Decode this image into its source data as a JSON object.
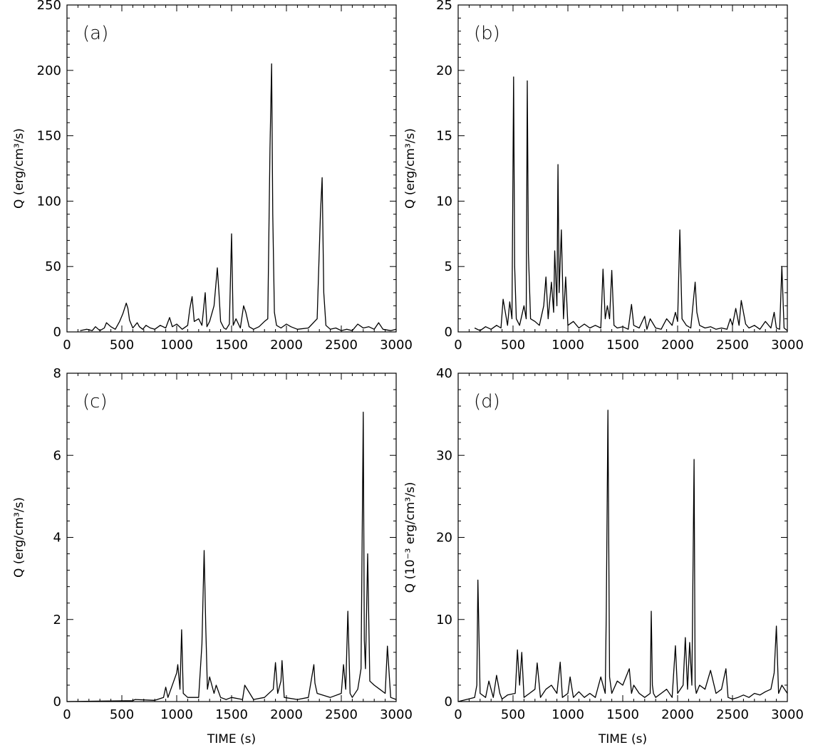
{
  "chart_data": [
    {
      "type": "line",
      "panel_label": "(a)",
      "ylabel": "Q (erg/cm³/s)",
      "xlabel": "",
      "xlim": [
        0,
        3000
      ],
      "ylim": [
        0,
        250
      ],
      "x_ticks": [
        0,
        500,
        1000,
        1500,
        2000,
        2500,
        3000
      ],
      "y_ticks": [
        0,
        50,
        100,
        150,
        200,
        250
      ],
      "series": [
        {
          "x": [
            120,
            180,
            230,
            260,
            300,
            340,
            360,
            400,
            440,
            480,
            510,
            540,
            555,
            570,
            600,
            640,
            660,
            690,
            720,
            760,
            800,
            850,
            900,
            935,
            960,
            1000,
            1050,
            1100,
            1120,
            1140,
            1160,
            1200,
            1230,
            1260,
            1275,
            1300,
            1340,
            1370,
            1385,
            1400,
            1430,
            1450,
            1480,
            1500,
            1515,
            1540,
            1580,
            1610,
            1630,
            1660,
            1700,
            1750,
            1800,
            1830,
            1850,
            1865,
            1875,
            1890,
            1910,
            1950,
            2000,
            2040,
            2100,
            2200,
            2280,
            2310,
            2325,
            2340,
            2360,
            2400,
            2450,
            2500,
            2550,
            2600,
            2650,
            2700,
            2750,
            2800,
            2840,
            2880,
            2950,
            3000
          ],
          "y": [
            1,
            2,
            1,
            4,
            1,
            3,
            7,
            4,
            2,
            8,
            14,
            22,
            18,
            9,
            3,
            7,
            4,
            2,
            5,
            3,
            2,
            5,
            3,
            11,
            4,
            6,
            2,
            5,
            18,
            27,
            8,
            10,
            5,
            30,
            4,
            8,
            20,
            49,
            30,
            8,
            3,
            2,
            6,
            75,
            5,
            10,
            3,
            20,
            15,
            4,
            2,
            4,
            8,
            10,
            140,
            205,
            90,
            15,
            5,
            3,
            6,
            4,
            2,
            3,
            10,
            90,
            118,
            30,
            5,
            2,
            3,
            1,
            2,
            1,
            6,
            3,
            4,
            2,
            7,
            2,
            1,
            2
          ]
        }
      ]
    },
    {
      "type": "line",
      "panel_label": "(b)",
      "ylabel": "Q (erg/cm³/s)",
      "xlabel": "",
      "xlim": [
        0,
        3000
      ],
      "ylim": [
        0,
        25
      ],
      "x_ticks": [
        0,
        500,
        1000,
        1500,
        2000,
        2500,
        3000
      ],
      "y_ticks": [
        0,
        5,
        10,
        15,
        20,
        25
      ],
      "series": [
        {
          "x": [
            150,
            200,
            250,
            300,
            350,
            390,
            410,
            450,
            470,
            490,
            505,
            515,
            530,
            560,
            600,
            620,
            630,
            640,
            660,
            700,
            740,
            780,
            800,
            820,
            850,
            870,
            880,
            900,
            910,
            920,
            940,
            960,
            980,
            1000,
            1050,
            1100,
            1150,
            1200,
            1250,
            1300,
            1320,
            1340,
            1360,
            1380,
            1400,
            1420,
            1450,
            1500,
            1550,
            1580,
            1600,
            1650,
            1700,
            1720,
            1750,
            1800,
            1850,
            1900,
            1950,
            1980,
            2000,
            2020,
            2040,
            2080,
            2120,
            2160,
            2175,
            2200,
            2250,
            2300,
            2350,
            2400,
            2450,
            2480,
            2500,
            2530,
            2560,
            2580,
            2620,
            2650,
            2700,
            2750,
            2800,
            2850,
            2880,
            2900,
            2930,
            2950,
            2970,
            3000
          ],
          "y": [
            0.3,
            0.1,
            0.4,
            0.2,
            0.5,
            0.3,
            2.5,
            0.5,
            2.3,
            1.0,
            19.5,
            5.0,
            1.0,
            0.5,
            2.0,
            1.0,
            19.2,
            6.0,
            1.0,
            0.8,
            0.5,
            2.0,
            4.2,
            1.0,
            3.8,
            1.5,
            6.2,
            2.0,
            12.8,
            3.0,
            7.8,
            1.0,
            4.2,
            0.5,
            0.8,
            0.3,
            0.6,
            0.3,
            0.5,
            0.3,
            4.8,
            1.0,
            2.0,
            1.0,
            4.7,
            0.5,
            0.3,
            0.4,
            0.2,
            2.1,
            0.5,
            0.3,
            1.2,
            0.2,
            1.0,
            0.3,
            0.2,
            1.0,
            0.5,
            1.5,
            0.8,
            7.8,
            1.0,
            0.5,
            0.3,
            3.8,
            1.5,
            0.5,
            0.3,
            0.4,
            0.2,
            0.3,
            0.2,
            1.0,
            0.5,
            1.8,
            0.5,
            2.4,
            0.6,
            0.3,
            0.5,
            0.2,
            0.8,
            0.3,
            1.5,
            0.3,
            0.2,
            5.0,
            0.3,
            0.1
          ]
        }
      ]
    },
    {
      "type": "line",
      "panel_label": "(c)",
      "ylabel": "Q (erg/cm³/s)",
      "xlabel": "TIME (s)",
      "xlim": [
        0,
        3000
      ],
      "ylim": [
        0,
        8
      ],
      "x_ticks": [
        0,
        500,
        1000,
        1500,
        2000,
        2500,
        3000
      ],
      "y_ticks": [
        0,
        2,
        4,
        6,
        8
      ],
      "series": [
        {
          "x": [
            0,
            600,
            620,
            800,
            880,
            900,
            920,
            1000,
            1010,
            1030,
            1045,
            1060,
            1100,
            1200,
            1230,
            1250,
            1265,
            1280,
            1300,
            1340,
            1360,
            1400,
            1450,
            1500,
            1600,
            1620,
            1700,
            1800,
            1880,
            1900,
            1920,
            1950,
            1960,
            1980,
            2100,
            2200,
            2250,
            2260,
            2280,
            2400,
            2500,
            2520,
            2540,
            2560,
            2580,
            2600,
            2650,
            2680,
            2700,
            2710,
            2720,
            2740,
            2760,
            2800,
            2850,
            2900,
            2920,
            2950,
            3000
          ],
          "y": [
            0,
            0.02,
            0.05,
            0.03,
            0.1,
            0.35,
            0.1,
            0.7,
            0.9,
            0.3,
            1.75,
            0.2,
            0.1,
            0.1,
            1.4,
            3.68,
            1.8,
            0.3,
            0.6,
            0.2,
            0.4,
            0.1,
            0.05,
            0.1,
            0.05,
            0.4,
            0.05,
            0.1,
            0.3,
            0.95,
            0.2,
            0.5,
            1.0,
            0.1,
            0.05,
            0.1,
            0.9,
            0.45,
            0.2,
            0.1,
            0.2,
            0.9,
            0.3,
            2.2,
            0.2,
            0.1,
            0.3,
            0.8,
            7.05,
            1.5,
            0.8,
            3.6,
            0.5,
            0.4,
            0.3,
            0.2,
            1.35,
            0.1,
            0.05
          ]
        }
      ]
    },
    {
      "type": "line",
      "panel_label": "(d)",
      "ylabel": "Q (10⁻³ erg/cm³/s)",
      "xlabel": "TIME (s)",
      "xlim": [
        0,
        3000
      ],
      "ylim": [
        0,
        40
      ],
      "x_ticks": [
        0,
        500,
        1000,
        1500,
        2000,
        2500,
        3000
      ],
      "y_ticks": [
        0,
        10,
        20,
        30,
        40
      ],
      "series": [
        {
          "x": [
            0,
            150,
            170,
            180,
            200,
            250,
            280,
            320,
            350,
            380,
            400,
            450,
            520,
            540,
            560,
            580,
            600,
            650,
            700,
            720,
            750,
            800,
            850,
            900,
            930,
            950,
            1000,
            1020,
            1050,
            1100,
            1150,
            1200,
            1250,
            1300,
            1340,
            1350,
            1365,
            1380,
            1400,
            1450,
            1500,
            1530,
            1560,
            1580,
            1600,
            1650,
            1700,
            1750,
            1760,
            1770,
            1780,
            1800,
            1850,
            1900,
            1950,
            1980,
            2000,
            2050,
            2070,
            2090,
            2110,
            2130,
            2150,
            2160,
            2170,
            2200,
            2250,
            2300,
            2350,
            2400,
            2440,
            2460,
            2500,
            2550,
            2600,
            2650,
            2700,
            2750,
            2800,
            2850,
            2880,
            2900,
            2920,
            2950,
            3000
          ],
          "y": [
            0,
            0.5,
            2,
            14.8,
            1,
            0.5,
            2.5,
            0.5,
            3.2,
            1,
            0.3,
            0.8,
            1,
            6.3,
            2,
            6,
            0.5,
            1,
            1.5,
            4.7,
            0.5,
            1.5,
            2,
            1,
            4.8,
            0.5,
            1,
            3,
            0.5,
            1.2,
            0.5,
            1,
            0.5,
            3,
            1,
            11,
            35.5,
            3,
            1,
            2.5,
            2,
            3,
            4,
            1,
            2,
            1,
            0.5,
            1,
            11,
            2,
            1,
            0.5,
            1,
            1.5,
            0.5,
            6.8,
            1,
            2,
            7.8,
            1.5,
            7.2,
            2,
            29.5,
            2,
            1,
            2,
            1.5,
            3.8,
            1,
            1.5,
            4,
            0.5,
            0.3,
            0.5,
            0.8,
            0.5,
            1,
            0.8,
            1.2,
            1.5,
            3.5,
            9.2,
            1,
            2,
            1
          ]
        }
      ]
    }
  ]
}
